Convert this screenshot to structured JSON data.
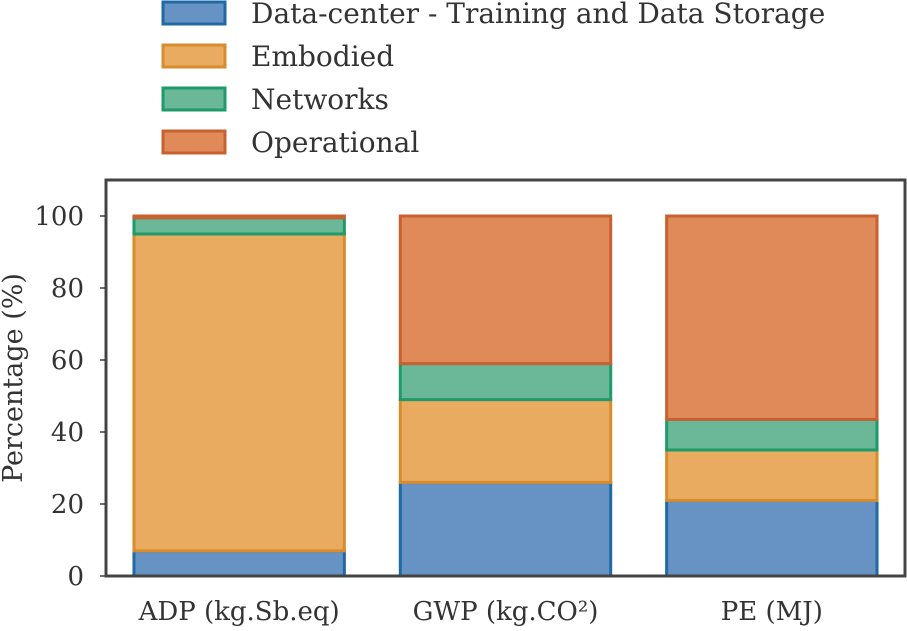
{
  "chart_data": {
    "type": "bar",
    "stacked": true,
    "percent": true,
    "categories": [
      "ADP (kg.Sb.eq)",
      "GWP (kg.CO²)",
      "PE (MJ)"
    ],
    "series": [
      {
        "name": "Data-center - Training and Data Storage",
        "values": [
          7,
          26,
          21
        ],
        "color": "#6792c4",
        "edge": "#1f6aa5"
      },
      {
        "name": "Embodied",
        "values": [
          88,
          23,
          14
        ],
        "color": "#e8ab60",
        "edge": "#d88d2d"
      },
      {
        "name": "Networks",
        "values": [
          4.5,
          10,
          8.5
        ],
        "color": "#6bb898",
        "edge": "#1f9a6a"
      },
      {
        "name": "Operational",
        "values": [
          0.5,
          41,
          56.5
        ],
        "color": "#e08a5a",
        "edge": "#c8612f"
      }
    ],
    "title": "",
    "xlabel": "",
    "ylabel": "Percentage (%)",
    "ylim": [
      0,
      110
    ],
    "yticks": [
      0,
      20,
      40,
      60,
      80,
      100
    ],
    "grid": false,
    "legend_position": "top"
  }
}
